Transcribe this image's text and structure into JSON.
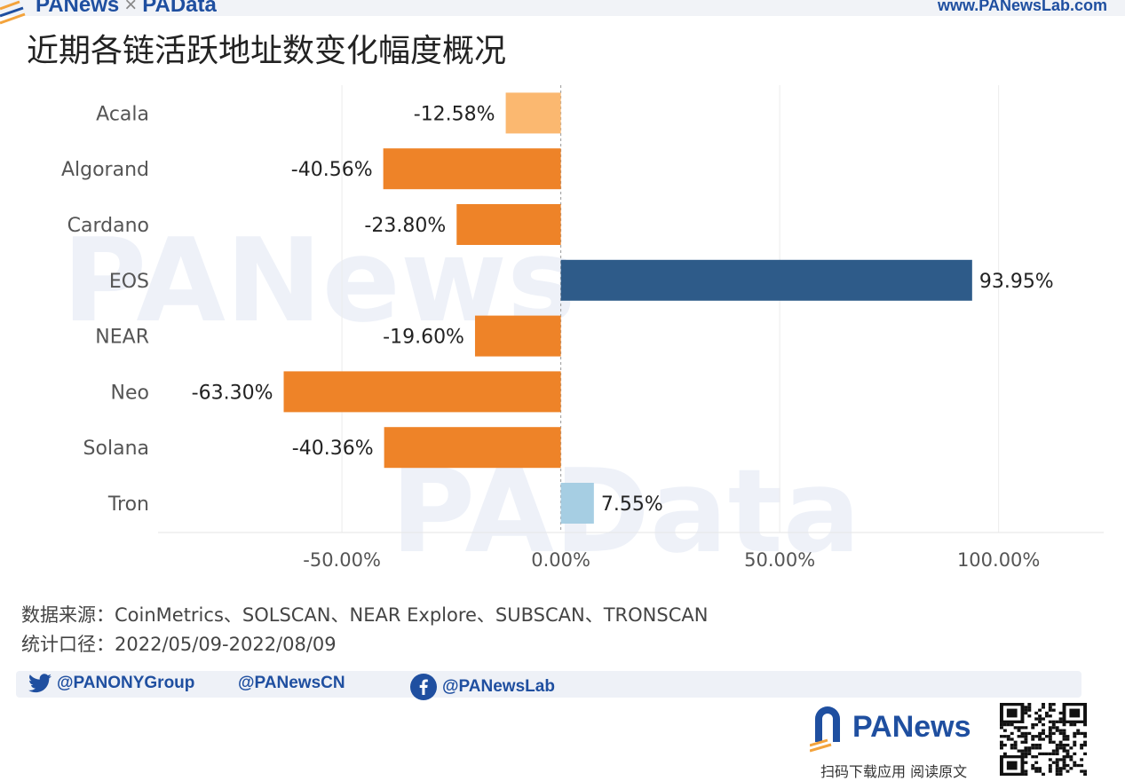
{
  "header": {
    "brand_left": "PANews",
    "brand_sep": "×",
    "brand_right": "PAData",
    "site": "www.PANewsLab.com"
  },
  "title": "近期各链活跃地址数变化幅度概况",
  "chart_data": {
    "type": "bar",
    "orientation": "horizontal",
    "categories": [
      "Acala",
      "Algorand",
      "Cardano",
      "EOS",
      "NEAR",
      "Neo",
      "Solana",
      "Tron"
    ],
    "values": [
      -12.58,
      -40.56,
      -23.8,
      93.95,
      -19.6,
      -63.3,
      -40.36,
      7.55
    ],
    "value_labels": [
      "-12.58%",
      "-40.56%",
      "-23.80%",
      "93.95%",
      "-19.60%",
      "-63.30%",
      "-40.36%",
      "7.55%"
    ],
    "x_ticks": [
      -50,
      0,
      50,
      100
    ],
    "x_tick_labels": [
      "-50.00%",
      "0.00%",
      "50.00%",
      "100.00%"
    ],
    "xlim": [
      -92,
      124
    ],
    "grid": true,
    "colors": {
      "-12.58": "#fbb870",
      "-19.60": "#fbb061",
      "-23.80": "#fba54f",
      "-40.36": "#ee8328",
      "-40.56": "#ee8328",
      "-63.30": "#d15b24",
      "7.55": "#a6cee3",
      "93.95": "#2e5b89"
    }
  },
  "source": {
    "line1": "数据来源：CoinMetrics、SOLSCAN、NEAR Explore、SUBSCAN、TRONSCAN",
    "line2": "统计口径：2022/05/09-2022/08/09"
  },
  "social": {
    "twitter": "@PANONYGroup",
    "weibo": "@PANewsCN",
    "facebook": "@PANewsLab"
  },
  "footer": {
    "logo_text": "PANews",
    "tagline": "扫码下载应用 阅读原文"
  },
  "watermarks": [
    "PANews",
    "PAData"
  ]
}
